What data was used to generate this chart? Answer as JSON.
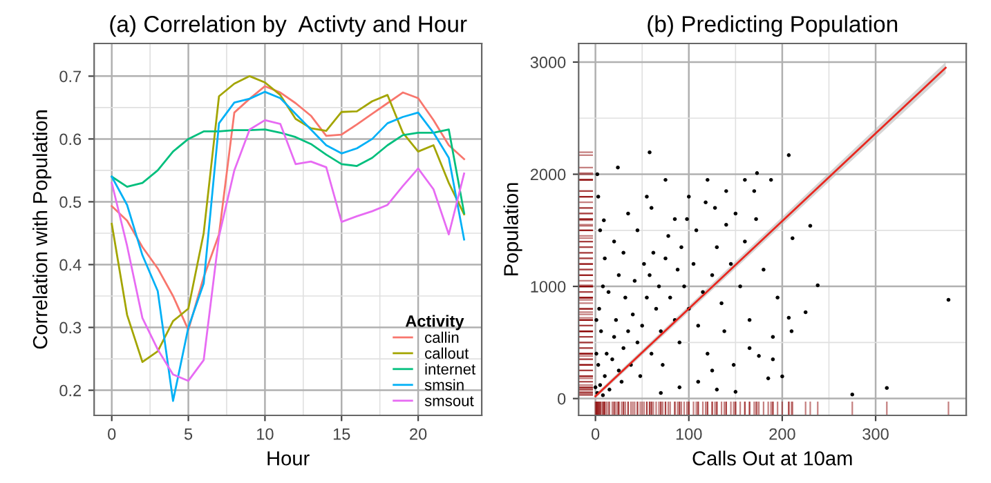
{
  "chart_data": [
    {
      "type": "line",
      "title": "(a) Correlation by  Activty and Hour",
      "xlabel": "Hour",
      "ylabel": "Correlation with Population",
      "x": [
        0,
        1,
        2,
        3,
        4,
        5,
        6,
        7,
        8,
        9,
        10,
        11,
        12,
        13,
        14,
        15,
        16,
        17,
        18,
        19,
        20,
        21,
        22,
        23
      ],
      "series": [
        {
          "name": "callin",
          "color": "#f8766d",
          "values": [
            0.493,
            0.47,
            0.428,
            0.394,
            0.35,
            0.296,
            0.38,
            0.448,
            0.642,
            0.664,
            0.684,
            0.674,
            0.657,
            0.637,
            0.605,
            0.607,
            0.623,
            0.64,
            0.657,
            0.674,
            0.665,
            0.63,
            0.59,
            0.568
          ]
        },
        {
          "name": "callout",
          "color": "#a3a500",
          "values": [
            0.465,
            0.32,
            0.245,
            0.262,
            0.31,
            0.33,
            0.45,
            0.668,
            0.688,
            0.7,
            0.69,
            0.67,
            0.632,
            0.617,
            0.613,
            0.643,
            0.644,
            0.66,
            0.67,
            0.61,
            0.58,
            0.59,
            0.53,
            0.48
          ]
        },
        {
          "name": "internet",
          "color": "#00bf7d",
          "values": [
            0.54,
            0.524,
            0.53,
            0.55,
            0.58,
            0.6,
            0.612,
            0.612,
            0.614,
            0.614,
            0.615,
            0.61,
            0.603,
            0.592,
            0.575,
            0.56,
            0.557,
            0.57,
            0.59,
            0.606,
            0.61,
            0.61,
            0.615,
            0.482
          ]
        },
        {
          "name": "smsin",
          "color": "#00b0f6",
          "values": [
            0.54,
            0.495,
            0.415,
            0.358,
            0.183,
            0.3,
            0.37,
            0.625,
            0.658,
            0.664,
            0.675,
            0.665,
            0.64,
            0.615,
            0.59,
            0.577,
            0.585,
            0.6,
            0.625,
            0.635,
            0.642,
            0.61,
            0.57,
            0.44
          ]
        },
        {
          "name": "smsout",
          "color": "#e76bf3",
          "values": [
            0.53,
            0.43,
            0.315,
            0.265,
            0.225,
            0.215,
            0.248,
            0.445,
            0.55,
            0.615,
            0.63,
            0.624,
            0.56,
            0.564,
            0.555,
            0.468,
            0.477,
            0.485,
            0.495,
            0.525,
            0.553,
            0.52,
            0.448,
            0.545
          ]
        }
      ],
      "xlim": [
        -1.15,
        24.15
      ],
      "ylim": [
        0.16,
        0.752
      ],
      "xticks": [
        0,
        5,
        10,
        15,
        20
      ],
      "yticks": [
        0.2,
        0.3,
        0.4,
        0.5,
        0.6,
        0.7
      ],
      "grid": true,
      "legend": "bottom right",
      "legend_title": "Activity"
    },
    {
      "type": "scatter",
      "title": "(b) Predicting Population",
      "xlabel": "Calls Out at 10am",
      "ylabel": "Population",
      "series": [
        {
          "type": "scatter",
          "color": "#000000",
          "x": [
            2,
            5,
            8,
            3,
            10,
            12,
            6,
            15,
            18,
            20,
            4,
            25,
            22,
            28,
            30,
            35,
            14,
            8,
            32,
            38,
            40,
            45,
            42,
            50,
            48,
            55,
            52,
            60,
            58,
            65,
            62,
            70,
            68,
            75,
            72,
            80,
            78,
            85,
            88,
            90,
            95,
            92,
            100,
            98,
            105,
            110,
            108,
            115,
            118,
            120,
            125,
            130,
            128,
            135,
            140,
            138,
            145,
            150,
            148,
            155,
            160,
            165,
            170,
            172,
            175,
            180,
            185,
            190,
            188,
            200,
            207,
            211,
            195,
            160,
            140,
            120,
            100,
            75,
            55,
            35,
            20,
            10,
            25,
            5,
            45,
            30,
            60,
            85,
            90,
            70,
            110,
            130,
            150,
            125,
            58,
            24,
            9,
            207,
            173,
            230,
            238,
            225,
            378,
            312,
            275,
            210,
            190,
            165,
            3,
            2,
            1,
            0,
            1
          ],
          "values": [
            50,
            120,
            30,
            300,
            200,
            400,
            600,
            80,
            350,
            550,
            800,
            250,
            700,
            150,
            450,
            600,
            950,
            1000,
            900,
            300,
            750,
            500,
            1050,
            650,
            200,
            900,
            1200,
            400,
            1100,
            800,
            1300,
            600,
            1000,
            1250,
            300,
            900,
            1450,
            700,
            1150,
            500,
            1000,
            1350,
            800,
            1600,
            1200,
            650,
            1500,
            950,
            1750,
            400,
            1100,
            1350,
            1700,
            850,
            1550,
            600,
            1200,
            1650,
            300,
            1000,
            1400,
            700,
            1850,
            1600,
            380,
            1150,
            180,
            350,
            1950,
            198,
            720,
            1430,
            900,
            1950,
            1850,
            1950,
            1800,
            1950,
            1800,
            1650,
            1400,
            1250,
            1100,
            1500,
            1500,
            1300,
            1700,
            1600,
            100,
            50,
            150,
            80,
            60,
            250,
            2196,
            2060,
            1590,
            2170,
            2010,
            1540,
            1010,
            770,
            880,
            95,
            36,
            600,
            550,
            450,
            1800,
            2000,
            700,
            100,
            400
          ]
        },
        {
          "type": "line",
          "color": "#e8271f",
          "x": [
            0,
            375
          ],
          "values": [
            20,
            2950
          ],
          "lower": [
            0,
            2900
          ],
          "upper": [
            40,
            3000
          ]
        }
      ],
      "xlim": [
        -18,
        397
      ],
      "ylim": [
        -150,
        3166
      ],
      "xticks": [
        0,
        100,
        200,
        300
      ],
      "yticks": [
        0,
        1000,
        2000,
        3000
      ],
      "grid": true
    }
  ]
}
